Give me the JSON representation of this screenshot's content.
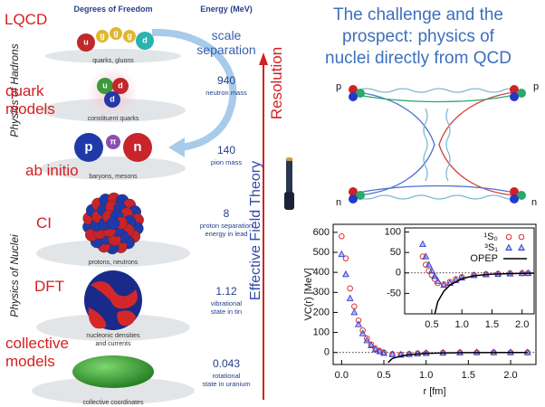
{
  "left_panel": {
    "headers": {
      "dof": "Degrees of Freedom",
      "energy": "Energy (MeV)"
    },
    "side_labels": [
      "Physics of Hadrons",
      "Physics of Nuclei"
    ],
    "arrows": {
      "resolution": "Resolution",
      "eft": "Effective Field Theory"
    },
    "particles": {
      "quarks": [
        "u",
        "g",
        "g",
        "g",
        "d"
      ],
      "constituent": [
        "u",
        "d",
        "d"
      ],
      "baryons": [
        "p",
        "π",
        "n"
      ]
    },
    "levels": [
      {
        "label": [
          "LQCD"
        ],
        "caption": [
          "quarks, gluons"
        ],
        "energy": [
          "scale",
          "separation"
        ]
      },
      {
        "label": [
          "quark",
          "models"
        ],
        "caption": [
          "constituent quarks"
        ],
        "energy": [
          940
        ],
        "note": [
          "neutron mass"
        ]
      },
      {
        "label": [
          "ab initio"
        ],
        "caption": [
          "baryons, mesons"
        ],
        "energy": [
          140
        ],
        "note": [
          "pion mass"
        ]
      },
      {
        "label": [
          "CI"
        ],
        "caption": [
          "protons, neutrons"
        ],
        "energy": [
          8
        ],
        "note": [
          "proton separation",
          "energy in lead"
        ]
      },
      {
        "label": [
          "DFT"
        ],
        "caption": [
          "nucleonic densities",
          "and currents"
        ],
        "energy": [
          1.12
        ],
        "note": [
          "vibrational",
          "state in tin"
        ]
      },
      {
        "label": [
          "collective",
          "models"
        ],
        "caption": [
          "collective coordinates"
        ],
        "energy": [
          0.043
        ],
        "note": [
          "rotational",
          "state in uranium"
        ]
      }
    ]
  },
  "title": [
    "The challenge and the",
    "prospect: physics of",
    "nuclei directly from QCD"
  ],
  "diagram": {
    "labels": [
      "p",
      "p",
      "n",
      "n"
    ]
  },
  "chart_data": [
    {
      "type": "scatter",
      "xlabel": "r [fm]",
      "ylabel": "VC(r) [MeV]",
      "xlim": [
        -0.1,
        2.3
      ],
      "ylim": [
        -60,
        640
      ],
      "xticks": [
        {
          "value": 0,
          "label": "0.0"
        },
        0.5,
        {
          "value": 1,
          "label": "1.0"
        },
        1.5,
        {
          "value": 2,
          "label": "2.0"
        }
      ],
      "yticks": [
        0,
        100,
        200,
        300,
        400,
        500,
        600
      ],
      "hline": 0,
      "series": [
        {
          "color": "#e03030",
          "marker": "circle",
          "x": [
            0.0,
            0.05,
            0.1,
            0.15,
            0.2,
            0.25,
            0.3,
            0.35,
            0.4,
            0.45,
            0.5,
            0.6,
            0.7,
            0.8,
            0.9,
            1.0,
            1.2,
            1.4,
            1.6,
            1.8,
            2.0,
            2.2
          ],
          "values": [
            580,
            470,
            320,
            230,
            160,
            110,
            70,
            40,
            20,
            8,
            0,
            -8,
            -10,
            -8,
            -5,
            -3,
            -1,
            0,
            0,
            0,
            0,
            0
          ]
        },
        {
          "color": "#3040d0",
          "marker": "triangle",
          "x": [
            0.0,
            0.05,
            0.1,
            0.15,
            0.2,
            0.25,
            0.3,
            0.35,
            0.4,
            0.45,
            0.5,
            0.6,
            0.7,
            0.8,
            0.9,
            1.0,
            1.2,
            1.4,
            1.6,
            1.8,
            2.0,
            2.2
          ],
          "values": [
            490,
            390,
            270,
            200,
            140,
            95,
            60,
            35,
            15,
            5,
            -3,
            -10,
            -12,
            -9,
            -6,
            -4,
            -2,
            -1,
            0,
            0,
            0,
            0
          ]
        },
        {
          "color": "#000000",
          "marker": "line",
          "x": [
            0.55,
            0.6,
            0.7,
            0.8,
            1.0,
            1.2,
            1.5,
            2.0,
            2.2
          ],
          "values": [
            -50,
            -30,
            -18,
            -11,
            -5,
            -2.5,
            -1,
            -0.3,
            -0.2
          ]
        }
      ]
    },
    {
      "type": "scatter",
      "legend": "upper right",
      "xlim": [
        0.05,
        2.2
      ],
      "ylim": [
        -100,
        110
      ],
      "xticks": [
        0.5,
        {
          "value": 1,
          "label": "1.0"
        },
        1.5,
        {
          "value": 2,
          "label": "2.0"
        }
      ],
      "yticks": [
        -50,
        0,
        50,
        100
      ],
      "hline": 0,
      "series": [
        {
          "name": "¹S₀",
          "color": "#e03030",
          "marker": "circle",
          "x": [
            0.35,
            0.4,
            0.45,
            0.5,
            0.55,
            0.6,
            0.7,
            0.8,
            0.9,
            1.0,
            1.2,
            1.4,
            1.6,
            1.8,
            2.0,
            2.1
          ],
          "values": [
            40,
            20,
            5,
            -5,
            -15,
            -25,
            -28,
            -22,
            -15,
            -10,
            -5,
            -3,
            -2,
            -1,
            -1,
            -0.5
          ]
        },
        {
          "name": "³S₁",
          "color": "#3040d0",
          "marker": "triangle",
          "x": [
            0.35,
            0.4,
            0.45,
            0.5,
            0.55,
            0.6,
            0.7,
            0.8,
            0.9,
            1.0,
            1.2,
            1.4,
            1.6,
            1.8,
            2.0,
            2.1
          ],
          "values": [
            70,
            40,
            20,
            5,
            -8,
            -20,
            -30,
            -25,
            -18,
            -12,
            -6,
            -4,
            -3,
            -2,
            -1,
            -1
          ]
        },
        {
          "name": "OPEP",
          "color": "#000000",
          "marker": "line",
          "x": [
            0.55,
            0.6,
            0.7,
            0.8,
            1.0,
            1.2,
            1.5,
            2.0,
            2.2
          ],
          "values": [
            -100,
            -70,
            -45,
            -30,
            -14,
            -7,
            -3,
            -1,
            -0.5
          ]
        }
      ]
    }
  ]
}
